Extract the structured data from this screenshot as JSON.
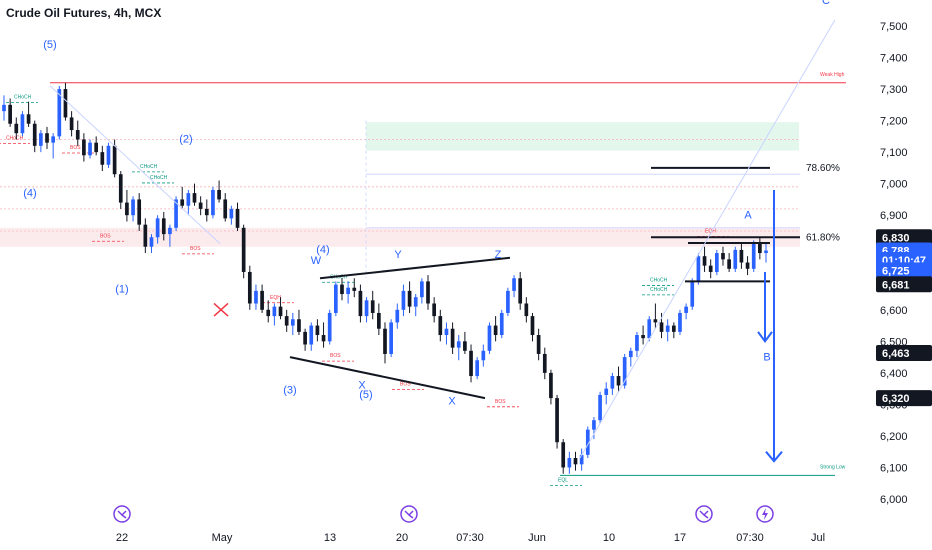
{
  "header": {
    "title": "Crude Oil Futures, 4h, MCX"
  },
  "colors": {
    "up": "#2962ff",
    "down": "#131722",
    "bos": "#f23645",
    "choch": "#089981",
    "wave": "#2962ff"
  },
  "chart_data": {
    "type": "candlestick",
    "symbol": "Crude Oil Futures",
    "interval": "4h",
    "exchange": "MCX",
    "y_ticks": [
      6000,
      6100,
      6200,
      6300,
      6400,
      6500,
      6600,
      6700,
      6800,
      6900,
      7000,
      7100,
      7200,
      7300,
      7400,
      7500
    ],
    "y_tick_labels": [
      "6,000",
      "6,100",
      "6,200",
      "6,300",
      "6,400",
      "6,500",
      "6,600",
      "6,700",
      "6,800",
      "6,900",
      "7,000",
      "7,100",
      "7,200",
      "7,300",
      "7,400",
      "7,500"
    ],
    "ylim": [
      6000,
      7500
    ],
    "x_ticks": [
      {
        "label": "22",
        "x": 122
      },
      {
        "label": "May",
        "x": 222
      },
      {
        "label": "13",
        "x": 330
      },
      {
        "label": "20",
        "x": 402
      },
      {
        "label": "07:30",
        "x": 470
      },
      {
        "label": "Jun",
        "x": 537
      },
      {
        "label": "10",
        "x": 609
      },
      {
        "label": "17",
        "x": 680
      },
      {
        "label": "07:30",
        "x": 750
      },
      {
        "label": "Jul",
        "x": 818
      }
    ],
    "price_tags": [
      {
        "value": "6,830",
        "price": 6830,
        "color": "#131722"
      },
      {
        "value": "6,788",
        "price": 6788,
        "color": "#2962ff"
      },
      {
        "value": "01:10:47",
        "price": 6758,
        "color": "#2962ff"
      },
      {
        "value": "6,725",
        "price": 6725,
        "color": "#2962ff"
      },
      {
        "value": "6,681",
        "price": 6681,
        "color": "#131722"
      },
      {
        "value": "6,463",
        "price": 6463,
        "color": "#131722"
      },
      {
        "value": "6,320",
        "price": 6320,
        "color": "#131722"
      }
    ],
    "fib_levels": [
      {
        "label": "78.60%",
        "price": 7050
      },
      {
        "label": "61.80%",
        "price": 6830
      }
    ],
    "zone_labels": [
      {
        "label": "Weak High",
        "price": 7320
      },
      {
        "label": "Strong Low",
        "price": 6075
      }
    ],
    "wave_labels": [
      {
        "text": "(5)",
        "x": 50,
        "price": 7430
      },
      {
        "text": "(2)",
        "x": 186,
        "price": 7130
      },
      {
        "text": "(4)",
        "x": 30,
        "price": 6960
      },
      {
        "text": "(1)",
        "x": 122,
        "price": 6655
      },
      {
        "text": "(4)",
        "x": 323,
        "price": 6780
      },
      {
        "text": "W",
        "x": 316,
        "price": 6745
      },
      {
        "text": "Y",
        "x": 398,
        "price": 6765
      },
      {
        "text": "Z",
        "x": 498,
        "price": 6765
      },
      {
        "text": "(3)",
        "x": 290,
        "price": 6335
      },
      {
        "text": "X",
        "x": 362,
        "price": 6350
      },
      {
        "text": "(5)",
        "x": 366,
        "price": 6320
      },
      {
        "text": "X",
        "x": 452,
        "price": 6300
      },
      {
        "text": "A",
        "x": 748,
        "price": 6890
      },
      {
        "text": "B",
        "x": 767,
        "price": 6440
      },
      {
        "text": "C",
        "x": 826,
        "price": 7570
      }
    ],
    "marker_labels": [
      "CHoCH",
      "CHoCH",
      "CHoCH",
      "CHoCH",
      "CHoCH",
      "BOS",
      "BOS",
      "BOS",
      "BOS",
      "EQH",
      "EQH",
      "EQL",
      "CHoCH",
      "CHoCH",
      "BOS",
      "BOS"
    ],
    "candles": [
      [
        7230,
        7280,
        7200,
        7250
      ],
      [
        7250,
        7270,
        7180,
        7190
      ],
      [
        7190,
        7210,
        7140,
        7160
      ],
      [
        7160,
        7230,
        7150,
        7220
      ],
      [
        7220,
        7260,
        7180,
        7190
      ],
      [
        7190,
        7200,
        7100,
        7120
      ],
      [
        7120,
        7170,
        7100,
        7160
      ],
      [
        7160,
        7180,
        7110,
        7130
      ],
      [
        7130,
        7160,
        7080,
        7150
      ],
      [
        7150,
        7310,
        7140,
        7300
      ],
      [
        7300,
        7320,
        7200,
        7210
      ],
      [
        7210,
        7230,
        7150,
        7170
      ],
      [
        7170,
        7200,
        7120,
        7140
      ],
      [
        7140,
        7160,
        7070,
        7090
      ],
      [
        7090,
        7140,
        7080,
        7130
      ],
      [
        7130,
        7150,
        7090,
        7100
      ],
      [
        7100,
        7120,
        7040,
        7060
      ],
      [
        7060,
        7130,
        7050,
        7120
      ],
      [
        7120,
        7140,
        7020,
        7030
      ],
      [
        7030,
        7040,
        6920,
        6940
      ],
      [
        6940,
        6980,
        6880,
        6900
      ],
      [
        6900,
        6960,
        6880,
        6950
      ],
      [
        6950,
        6970,
        6850,
        6870
      ],
      [
        6870,
        6890,
        6780,
        6800
      ],
      [
        6800,
        6840,
        6780,
        6830
      ],
      [
        6830,
        6900,
        6810,
        6890
      ],
      [
        6890,
        6910,
        6820,
        6840
      ],
      [
        6840,
        6870,
        6800,
        6860
      ],
      [
        6860,
        6960,
        6850,
        6950
      ],
      [
        6950,
        6990,
        6920,
        6930
      ],
      [
        6930,
        6980,
        6900,
        6970
      ],
      [
        6970,
        7000,
        6930,
        6940
      ],
      [
        6940,
        6960,
        6900,
        6920
      ],
      [
        6920,
        6950,
        6880,
        6900
      ],
      [
        6900,
        6990,
        6890,
        6980
      ],
      [
        6980,
        7010,
        6940,
        6950
      ],
      [
        6950,
        6970,
        6880,
        6890
      ],
      [
        6890,
        6930,
        6870,
        6920
      ],
      [
        6920,
        6940,
        6850,
        6860
      ],
      [
        6860,
        6870,
        6700,
        6720
      ],
      [
        6720,
        6740,
        6600,
        6620
      ],
      [
        6620,
        6680,
        6600,
        6660
      ],
      [
        6660,
        6680,
        6590,
        6600
      ],
      [
        6600,
        6630,
        6560,
        6580
      ],
      [
        6580,
        6620,
        6550,
        6610
      ],
      [
        6610,
        6640,
        6570,
        6580
      ],
      [
        6580,
        6600,
        6530,
        6550
      ],
      [
        6550,
        6590,
        6520,
        6570
      ],
      [
        6570,
        6600,
        6520,
        6530
      ],
      [
        6530,
        6540,
        6470,
        6490
      ],
      [
        6490,
        6560,
        6470,
        6550
      ],
      [
        6550,
        6570,
        6500,
        6520
      ],
      [
        6520,
        6560,
        6480,
        6500
      ],
      [
        6500,
        6600,
        6490,
        6590
      ],
      [
        6590,
        6690,
        6580,
        6680
      ],
      [
        6680,
        6700,
        6630,
        6650
      ],
      [
        6650,
        6690,
        6620,
        6670
      ],
      [
        6670,
        6700,
        6640,
        6660
      ],
      [
        6660,
        6680,
        6560,
        6580
      ],
      [
        6580,
        6640,
        6560,
        6630
      ],
      [
        6630,
        6660,
        6570,
        6590
      ],
      [
        6590,
        6620,
        6520,
        6540
      ],
      [
        6540,
        6560,
        6430,
        6460
      ],
      [
        6460,
        6570,
        6450,
        6560
      ],
      [
        6560,
        6620,
        6540,
        6600
      ],
      [
        6600,
        6680,
        6580,
        6660
      ],
      [
        6660,
        6690,
        6590,
        6610
      ],
      [
        6610,
        6650,
        6580,
        6640
      ],
      [
        6640,
        6700,
        6620,
        6690
      ],
      [
        6690,
        6710,
        6600,
        6620
      ],
      [
        6620,
        6640,
        6560,
        6580
      ],
      [
        6580,
        6600,
        6500,
        6520
      ],
      [
        6520,
        6560,
        6490,
        6540
      ],
      [
        6540,
        6560,
        6460,
        6480
      ],
      [
        6480,
        6520,
        6440,
        6500
      ],
      [
        6500,
        6530,
        6460,
        6470
      ],
      [
        6470,
        6490,
        6370,
        6390
      ],
      [
        6390,
        6450,
        6380,
        6440
      ],
      [
        6440,
        6490,
        6420,
        6470
      ],
      [
        6470,
        6560,
        6460,
        6550
      ],
      [
        6550,
        6580,
        6500,
        6520
      ],
      [
        6520,
        6600,
        6510,
        6590
      ],
      [
        6590,
        6670,
        6580,
        6660
      ],
      [
        6660,
        6710,
        6640,
        6700
      ],
      [
        6700,
        6720,
        6600,
        6620
      ],
      [
        6620,
        6640,
        6560,
        6580
      ],
      [
        6580,
        6590,
        6500,
        6520
      ],
      [
        6520,
        6540,
        6440,
        6460
      ],
      [
        6460,
        6480,
        6380,
        6400
      ],
      [
        6400,
        6410,
        6300,
        6320
      ],
      [
        6320,
        6330,
        6160,
        6180
      ],
      [
        6180,
        6190,
        6080,
        6100
      ],
      [
        6100,
        6150,
        6080,
        6130
      ],
      [
        6130,
        6150,
        6090,
        6110
      ],
      [
        6110,
        6160,
        6090,
        6140
      ],
      [
        6140,
        6230,
        6130,
        6220
      ],
      [
        6220,
        6260,
        6190,
        6250
      ],
      [
        6250,
        6340,
        6240,
        6330
      ],
      [
        6330,
        6370,
        6300,
        6350
      ],
      [
        6350,
        6400,
        6330,
        6390
      ],
      [
        6390,
        6420,
        6340,
        6360
      ],
      [
        6360,
        6460,
        6350,
        6450
      ],
      [
        6450,
        6480,
        6420,
        6470
      ],
      [
        6470,
        6530,
        6450,
        6520
      ],
      [
        6520,
        6550,
        6490,
        6510
      ],
      [
        6510,
        6580,
        6500,
        6570
      ],
      [
        6570,
        6620,
        6540,
        6560
      ],
      [
        6560,
        6590,
        6510,
        6530
      ],
      [
        6530,
        6570,
        6500,
        6550
      ],
      [
        6550,
        6560,
        6510,
        6530
      ],
      [
        6530,
        6600,
        6520,
        6590
      ],
      [
        6590,
        6620,
        6570,
        6610
      ],
      [
        6610,
        6700,
        6600,
        6690
      ],
      [
        6690,
        6780,
        6680,
        6770
      ],
      [
        6770,
        6800,
        6720,
        6740
      ],
      [
        6740,
        6760,
        6700,
        6720
      ],
      [
        6720,
        6790,
        6710,
        6780
      ],
      [
        6780,
        6800,
        6740,
        6760
      ],
      [
        6760,
        6780,
        6720,
        6730
      ],
      [
        6730,
        6800,
        6720,
        6790
      ],
      [
        6790,
        6810,
        6730,
        6750
      ],
      [
        6750,
        6770,
        6710,
        6730
      ],
      [
        6730,
        6820,
        6720,
        6810
      ],
      [
        6810,
        6830,
        6760,
        6780
      ],
      [
        6780,
        6810,
        6750,
        6788
      ]
    ],
    "icons": [
      "play-icon",
      "play-icon",
      "play-icon",
      "lightning-icon"
    ]
  }
}
